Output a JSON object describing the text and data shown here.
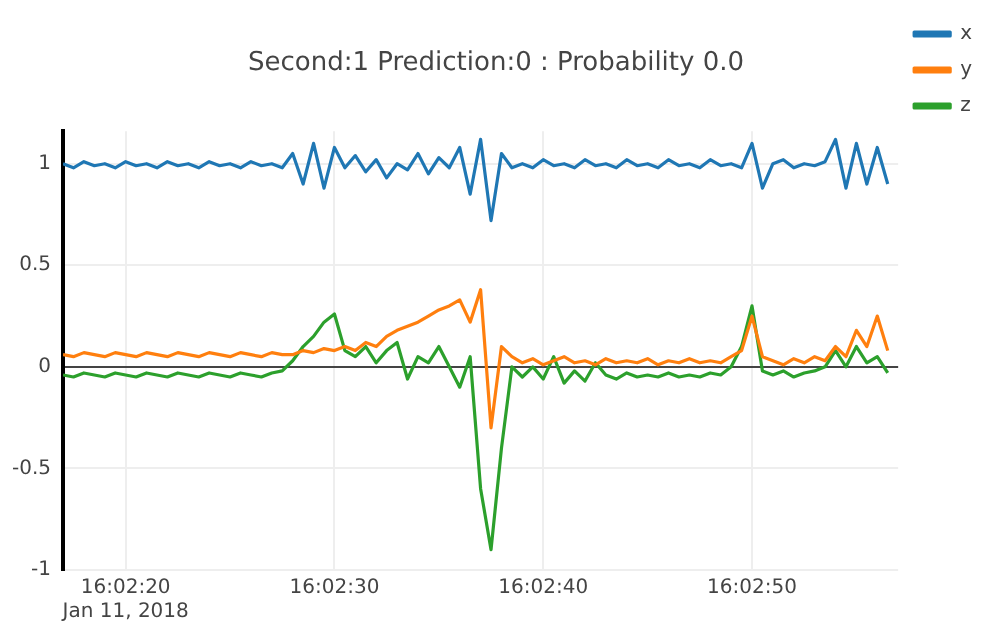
{
  "chart_data": {
    "type": "line",
    "title": "Second:1 Prediction:0 : Probability 0.0",
    "x": [
      "2018-01-11T16:02:17",
      "2018-01-11T16:02:17.5",
      "2018-01-11T16:02:18",
      "2018-01-11T16:02:18.5",
      "2018-01-11T16:02:19",
      "2018-01-11T16:02:19.5",
      "2018-01-11T16:02:20",
      "2018-01-11T16:02:20.5",
      "2018-01-11T16:02:21",
      "2018-01-11T16:02:21.5",
      "2018-01-11T16:02:22",
      "2018-01-11T16:02:22.5",
      "2018-01-11T16:02:23",
      "2018-01-11T16:02:23.5",
      "2018-01-11T16:02:24",
      "2018-01-11T16:02:24.5",
      "2018-01-11T16:02:25",
      "2018-01-11T16:02:25.5",
      "2018-01-11T16:02:26",
      "2018-01-11T16:02:26.5",
      "2018-01-11T16:02:27",
      "2018-01-11T16:02:27.5",
      "2018-01-11T16:02:28",
      "2018-01-11T16:02:28.5",
      "2018-01-11T16:02:29",
      "2018-01-11T16:02:29.5",
      "2018-01-11T16:02:30",
      "2018-01-11T16:02:30.5",
      "2018-01-11T16:02:31",
      "2018-01-11T16:02:31.5",
      "2018-01-11T16:02:32",
      "2018-01-11T16:02:32.5",
      "2018-01-11T16:02:33",
      "2018-01-11T16:02:33.5",
      "2018-01-11T16:02:34",
      "2018-01-11T16:02:34.5",
      "2018-01-11T16:02:35",
      "2018-01-11T16:02:35.5",
      "2018-01-11T16:02:36",
      "2018-01-11T16:02:36.5",
      "2018-01-11T16:02:37",
      "2018-01-11T16:02:37.5",
      "2018-01-11T16:02:38",
      "2018-01-11T16:02:38.5",
      "2018-01-11T16:02:39",
      "2018-01-11T16:02:39.5",
      "2018-01-11T16:02:40",
      "2018-01-11T16:02:40.5",
      "2018-01-11T16:02:41",
      "2018-01-11T16:02:41.5",
      "2018-01-11T16:02:42",
      "2018-01-11T16:02:42.5",
      "2018-01-11T16:02:43",
      "2018-01-11T16:02:43.5",
      "2018-01-11T16:02:44",
      "2018-01-11T16:02:44.5",
      "2018-01-11T16:02:45",
      "2018-01-11T16:02:45.5",
      "2018-01-11T16:02:46",
      "2018-01-11T16:02:46.5",
      "2018-01-11T16:02:47",
      "2018-01-11T16:02:47.5",
      "2018-01-11T16:02:48",
      "2018-01-11T16:02:48.5",
      "2018-01-11T16:02:49",
      "2018-01-11T16:02:49.5",
      "2018-01-11T16:02:50",
      "2018-01-11T16:02:50.5",
      "2018-01-11T16:02:51",
      "2018-01-11T16:02:51.5",
      "2018-01-11T16:02:52",
      "2018-01-11T16:02:52.5",
      "2018-01-11T16:02:53",
      "2018-01-11T16:02:53.5",
      "2018-01-11T16:02:54",
      "2018-01-11T16:02:54.5",
      "2018-01-11T16:02:55",
      "2018-01-11T16:02:55.5",
      "2018-01-11T16:02:56",
      "2018-01-11T16:02:56.5"
    ],
    "series": [
      {
        "name": "x",
        "color": "#1f77b4",
        "values": [
          1.0,
          0.98,
          1.01,
          0.99,
          1.0,
          0.98,
          1.01,
          0.99,
          1.0,
          0.98,
          1.01,
          0.99,
          1.0,
          0.98,
          1.01,
          0.99,
          1.0,
          0.98,
          1.01,
          0.99,
          1.0,
          0.98,
          1.05,
          0.9,
          1.1,
          0.88,
          1.08,
          0.98,
          1.04,
          0.96,
          1.02,
          0.93,
          1.0,
          0.97,
          1.05,
          0.95,
          1.03,
          0.98,
          1.08,
          0.85,
          1.12,
          0.72,
          1.05,
          0.98,
          1.0,
          0.98,
          1.02,
          0.99,
          1.0,
          0.98,
          1.02,
          0.99,
          1.0,
          0.98,
          1.02,
          0.99,
          1.0,
          0.98,
          1.02,
          0.99,
          1.0,
          0.98,
          1.02,
          0.99,
          1.0,
          0.98,
          1.1,
          0.88,
          1.0,
          1.02,
          0.98,
          1.0,
          0.99,
          1.01,
          1.12,
          0.88,
          1.1,
          0.9,
          1.08,
          0.9
        ]
      },
      {
        "name": "y",
        "color": "#ff7f0e",
        "values": [
          0.06,
          0.05,
          0.07,
          0.06,
          0.05,
          0.07,
          0.06,
          0.05,
          0.07,
          0.06,
          0.05,
          0.07,
          0.06,
          0.05,
          0.07,
          0.06,
          0.05,
          0.07,
          0.06,
          0.05,
          0.07,
          0.06,
          0.06,
          0.08,
          0.07,
          0.09,
          0.08,
          0.1,
          0.08,
          0.12,
          0.1,
          0.15,
          0.18,
          0.2,
          0.22,
          0.25,
          0.28,
          0.3,
          0.33,
          0.22,
          0.38,
          -0.3,
          0.1,
          0.05,
          0.02,
          0.04,
          0.01,
          0.03,
          0.05,
          0.02,
          0.03,
          0.01,
          0.04,
          0.02,
          0.03,
          0.02,
          0.04,
          0.01,
          0.03,
          0.02,
          0.04,
          0.02,
          0.03,
          0.02,
          0.05,
          0.08,
          0.25,
          0.05,
          0.03,
          0.01,
          0.04,
          0.02,
          0.05,
          0.03,
          0.1,
          0.05,
          0.18,
          0.1,
          0.25,
          0.08
        ]
      },
      {
        "name": "z",
        "color": "#2ca02c",
        "values": [
          -0.04,
          -0.05,
          -0.03,
          -0.04,
          -0.05,
          -0.03,
          -0.04,
          -0.05,
          -0.03,
          -0.04,
          -0.05,
          -0.03,
          -0.04,
          -0.05,
          -0.03,
          -0.04,
          -0.05,
          -0.03,
          -0.04,
          -0.05,
          -0.03,
          -0.02,
          0.03,
          0.1,
          0.15,
          0.22,
          0.26,
          0.08,
          0.05,
          0.1,
          0.02,
          0.08,
          0.12,
          -0.06,
          0.05,
          0.02,
          0.1,
          0.0,
          -0.1,
          0.05,
          -0.6,
          -0.9,
          -0.4,
          0.0,
          -0.05,
          0.0,
          -0.06,
          0.05,
          -0.08,
          -0.02,
          -0.07,
          0.02,
          -0.04,
          -0.06,
          -0.03,
          -0.05,
          -0.04,
          -0.05,
          -0.03,
          -0.05,
          -0.04,
          -0.05,
          -0.03,
          -0.04,
          0.0,
          0.1,
          0.3,
          -0.02,
          -0.04,
          -0.02,
          -0.05,
          -0.03,
          -0.02,
          0.0,
          0.08,
          0.0,
          0.1,
          0.02,
          0.05,
          -0.03
        ]
      }
    ],
    "xlim": [
      "2018-01-11T16:02:17",
      "2018-01-11T16:02:57"
    ],
    "xticks": [
      {
        "value": "2018-01-11T16:02:20",
        "label": "16:02:20\nJan 11, 2018"
      },
      {
        "value": "2018-01-11T16:02:30",
        "label": "16:02:30"
      },
      {
        "value": "2018-01-11T16:02:40",
        "label": "16:02:40"
      },
      {
        "value": "2018-01-11T16:02:50",
        "label": "16:02:50"
      }
    ],
    "ylim": [
      -1,
      1.16
    ],
    "yticks": [
      -1,
      -0.5,
      0,
      0.5,
      1
    ],
    "grid": true,
    "legend": "top right",
    "marker": "none",
    "line_style": "solid"
  }
}
